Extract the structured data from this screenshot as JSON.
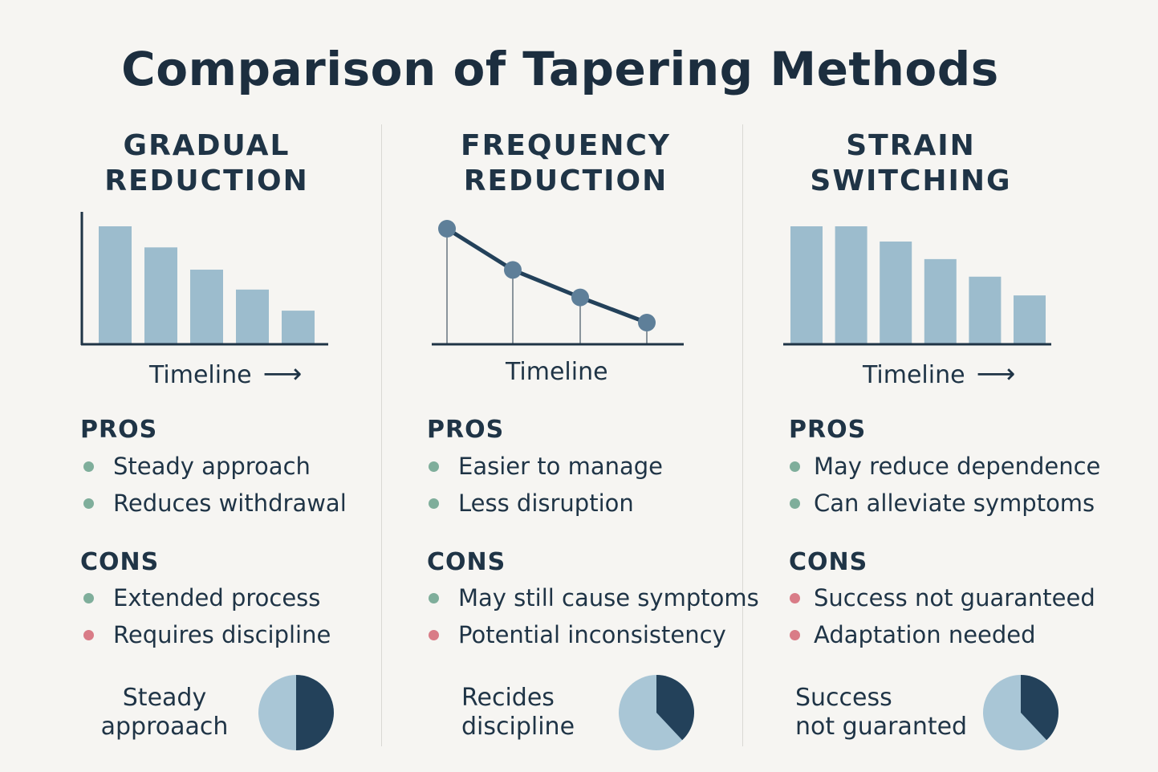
{
  "title": "Comparison of Tapering Methods",
  "colors": {
    "bar": "#9cbccd",
    "dark": "#23415a",
    "pie_light": "#a9c6d6",
    "green": "#7fae9b",
    "red": "#d97c87",
    "axis": "#1f3446"
  },
  "methods": [
    {
      "title": "GRADUAL\nREDUCTION",
      "timeline": "Timeline",
      "pros_label": "PROS",
      "pros": [
        {
          "text": "Steady approach",
          "color": "green"
        },
        {
          "text": "Reduces withdrawal",
          "color": "green"
        }
      ],
      "cons_label": "CONS",
      "cons": [
        {
          "text": "Extended process",
          "color": "green"
        },
        {
          "text": "Requires discipline",
          "color": "red"
        }
      ],
      "note": "Steady\napproaach",
      "pie_dark_fraction": 0.5
    },
    {
      "title": "FREQUENCY\nREDUCTION",
      "timeline": "Timeline",
      "pros_label": "PROS",
      "pros": [
        {
          "text": "Easier to manage",
          "color": "green"
        },
        {
          "text": "Less disruption",
          "color": "green"
        }
      ],
      "cons_label": "CONS",
      "cons": [
        {
          "text": "May still cause symptoms",
          "color": "green"
        },
        {
          "text": "Potential inconsistency",
          "color": "red"
        }
      ],
      "note": "Recides\ndiscipline",
      "pie_dark_fraction": 0.38
    },
    {
      "title": "STRAIN\nSWITCHING",
      "timeline": "Timeline",
      "pros_label": "PROS",
      "pros": [
        {
          "text": "May reduce dependence",
          "color": "green"
        },
        {
          "text": "Can alleviate symptoms",
          "color": "green"
        }
      ],
      "cons_label": "CONS",
      "cons": [
        {
          "text": "Success not guaranteed",
          "color": "red"
        },
        {
          "text": "Adaptation needed",
          "color": "red"
        }
      ],
      "note": "Success\nnot guaranted",
      "pie_dark_fraction": 0.38
    }
  ],
  "chart_data": [
    {
      "type": "bar",
      "values": [
        100,
        82,
        63,
        46,
        28
      ]
    },
    {
      "type": "line",
      "values": [
        100,
        64,
        40,
        18
      ]
    },
    {
      "type": "bar",
      "values": [
        100,
        100,
        87,
        72,
        57,
        41
      ]
    }
  ]
}
